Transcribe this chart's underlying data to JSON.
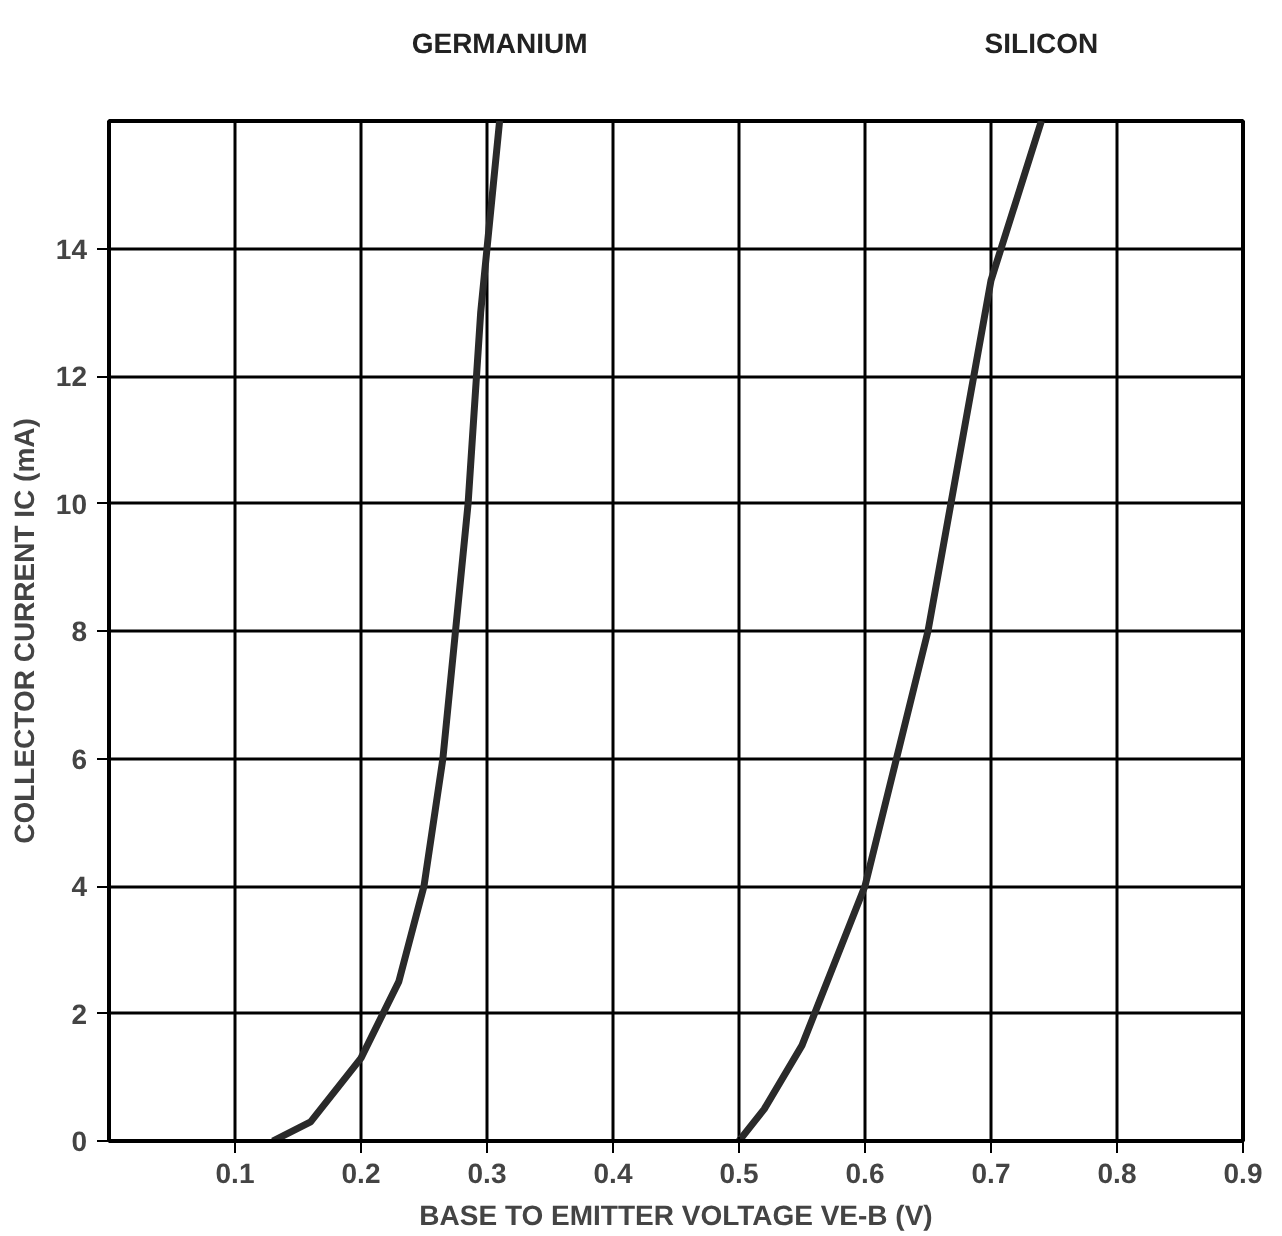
{
  "chart_data": {
    "type": "line",
    "xlabel": "BASE TO EMITTER VOLTAGE VE-B (V)",
    "ylabel": "COLLECTOR CURRENT IC (mA)",
    "xlim": [
      0,
      0.9
    ],
    "ylim": [
      0,
      16
    ],
    "xticks": [
      0.1,
      0.2,
      0.3,
      0.4,
      0.5,
      0.6,
      0.7,
      0.8,
      0.9
    ],
    "yticks": [
      0,
      2,
      4,
      6,
      8,
      10,
      12,
      14
    ],
    "grid": true,
    "marker": "none",
    "line_style": "solid",
    "series": [
      {
        "name": "GERMANIUM",
        "color": "#2a2a2a",
        "x": [
          0.13,
          0.16,
          0.2,
          0.23,
          0.25,
          0.265,
          0.275,
          0.285,
          0.295,
          0.31
        ],
        "values": [
          0,
          0.3,
          1.3,
          2.5,
          4,
          6,
          8,
          10,
          13,
          16
        ]
      },
      {
        "name": "SILICON",
        "color": "#2a2a2a",
        "x": [
          0.5,
          0.52,
          0.55,
          0.58,
          0.6,
          0.65,
          0.7,
          0.74
        ],
        "values": [
          0,
          0.5,
          1.5,
          3,
          4,
          8,
          13.5,
          16
        ]
      }
    ]
  }
}
